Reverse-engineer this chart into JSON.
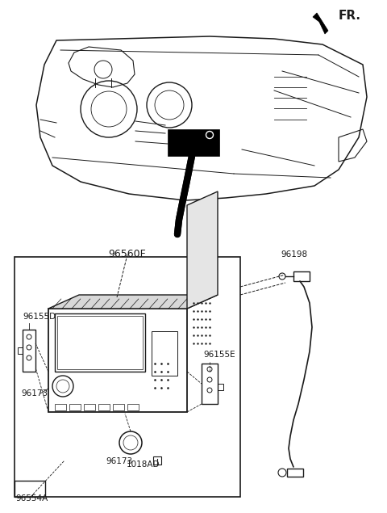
{
  "bg_color": "#ffffff",
  "lc": "#1a1a1a",
  "tc": "#1a1a1a",
  "labels": {
    "FR": "FR.",
    "96560F": "96560F",
    "96155D": "96155D",
    "96155E": "96155E",
    "96173a": "96173",
    "96173b": "96173",
    "96198": "96198",
    "96554A": "96554A",
    "1018AD": "1018AD"
  },
  "fs": 7.5,
  "fs_title": 9
}
